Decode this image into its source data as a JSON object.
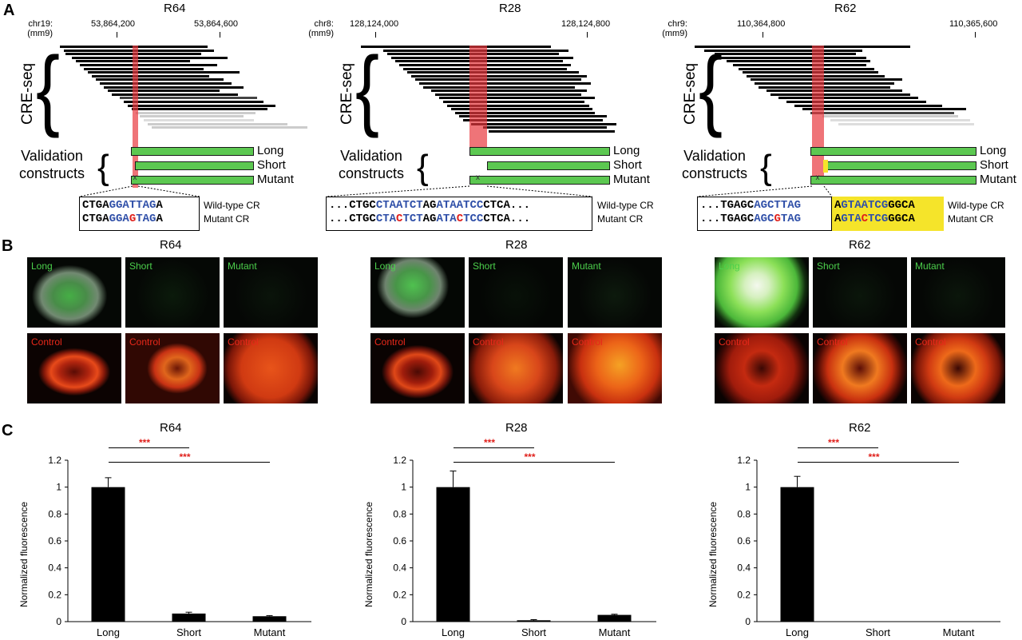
{
  "panel_letters": {
    "a": "A",
    "b": "B",
    "c": "C"
  },
  "track_labels": {
    "cre_seq": "CRE-seq",
    "validation_line1": "Validation",
    "validation_line2": "constructs"
  },
  "panel_a": [
    {
      "title": "R64",
      "chrom": "chr19:",
      "assembly": "(mm9)",
      "coords": [
        "53,864,200",
        "53,864,600"
      ],
      "constructs": [
        "Long",
        "Short",
        "Mutant"
      ],
      "wt_seq": [
        {
          "t": "CTGA",
          "c": "k"
        },
        {
          "t": "GGATTAG",
          "c": "b"
        },
        {
          "t": "A",
          "c": "k"
        }
      ],
      "mut_seq": [
        {
          "t": "CTGA",
          "c": "k"
        },
        {
          "t": "GGA",
          "c": "b"
        },
        {
          "t": "G",
          "c": "r"
        },
        {
          "t": "TAG",
          "c": "b"
        },
        {
          "t": "A",
          "c": "k"
        }
      ],
      "wt_label": "Wild-type CR",
      "mut_label": "Mutant CR"
    },
    {
      "title": "R28",
      "chrom": "chr8:",
      "assembly": "(mm9)",
      "coords": [
        "128,124,000",
        "128,124,800"
      ],
      "constructs": [
        "Long",
        "Short",
        "Mutant"
      ],
      "wt_seq": [
        {
          "t": "...CTGC",
          "c": "k"
        },
        {
          "t": "CTAATCT",
          "c": "b"
        },
        {
          "t": "AG",
          "c": "k"
        },
        {
          "t": "ATAATCC",
          "c": "b"
        },
        {
          "t": "CTCA...",
          "c": "k"
        }
      ],
      "mut_seq": [
        {
          "t": "...CTGC",
          "c": "k"
        },
        {
          "t": "CTA",
          "c": "b"
        },
        {
          "t": "C",
          "c": "r"
        },
        {
          "t": "TCT",
          "c": "b"
        },
        {
          "t": "AG",
          "c": "k"
        },
        {
          "t": "ATA",
          "c": "b"
        },
        {
          "t": "C",
          "c": "r"
        },
        {
          "t": "TCC",
          "c": "b"
        },
        {
          "t": "CTCA...",
          "c": "k"
        }
      ],
      "wt_label": "Wild-type CR",
      "mut_label": "Mutant CR"
    },
    {
      "title": "R62",
      "chrom": "chr9:",
      "assembly": "(mm9)",
      "coords": [
        "110,364,800",
        "110,365,600"
      ],
      "constructs": [
        "Long",
        "Short",
        "Mutant"
      ],
      "wt_seq": [
        {
          "t": "...TGAGC",
          "c": "k"
        },
        {
          "t": "AGCTTAG",
          "c": "b"
        }
      ],
      "mut_seq": [
        {
          "t": "...TGAGC",
          "c": "k"
        },
        {
          "t": "AGC",
          "c": "b"
        },
        {
          "t": "G",
          "c": "r"
        },
        {
          "t": "TAG",
          "c": "b"
        }
      ],
      "wt_seq2": [
        {
          "t": "A",
          "c": "k"
        },
        {
          "t": "GTAATCG",
          "c": "b"
        },
        {
          "t": "GGCA",
          "c": "k"
        }
      ],
      "mut_seq2": [
        {
          "t": "A",
          "c": "k"
        },
        {
          "t": "GTA",
          "c": "b"
        },
        {
          "t": "C",
          "c": "r"
        },
        {
          "t": "TCG",
          "c": "b"
        },
        {
          "t": "GGCA",
          "c": "k"
        }
      ],
      "wt_label": "Wild-type CR",
      "mut_label": "Mutant CR"
    }
  ],
  "panel_b": [
    {
      "title": "R64",
      "top": [
        "Long",
        "Short",
        "Mutant"
      ],
      "bottom": [
        "Control",
        "Control",
        "Control"
      ]
    },
    {
      "title": "R28",
      "top": [
        "Long",
        "Short",
        "Mutant"
      ],
      "bottom": [
        "Control",
        "Control",
        "Control"
      ]
    },
    {
      "title": "R62",
      "top": [
        "Long",
        "Short",
        "Mutant"
      ],
      "bottom": [
        "Control",
        "Control",
        "Control"
      ]
    }
  ],
  "colors": {
    "highlight_red": "#e8393f",
    "construct_green": "#5cc851",
    "seq_blue": "#2f4fa8",
    "seq_red": "#e0201b",
    "yellow_highlight": "#f5e42a",
    "gfp_green": "#4cd04c",
    "control_red": "#e8281a",
    "significance_red": "#e0201b"
  },
  "chart_data": [
    {
      "type": "bar",
      "title": "R64",
      "categories": [
        "Long",
        "Short",
        "Mutant"
      ],
      "values": [
        1.0,
        0.06,
        0.04
      ],
      "errors": [
        0.07,
        0.01,
        0.005
      ],
      "ylabel": "Normalized fluorescence",
      "ylim": [
        0,
        1.2
      ],
      "yticks": [
        "0",
        "0.2",
        "0.4",
        "0.6",
        "0.8",
        "1",
        "1.2"
      ],
      "significance": [
        {
          "from": "Long",
          "to": "Short",
          "label": "***"
        },
        {
          "from": "Long",
          "to": "Mutant",
          "label": "***"
        }
      ]
    },
    {
      "type": "bar",
      "title": "R28",
      "categories": [
        "Long",
        "Short",
        "Mutant"
      ],
      "values": [
        1.0,
        0.01,
        0.05
      ],
      "errors": [
        0.12,
        0.005,
        0.005
      ],
      "ylabel": "Normalized fluorescence",
      "ylim": [
        0,
        1.2
      ],
      "yticks": [
        "0",
        "0.2",
        "0.4",
        "0.6",
        "0.8",
        "1",
        "1.2"
      ],
      "significance": [
        {
          "from": "Long",
          "to": "Short",
          "label": "***"
        },
        {
          "from": "Long",
          "to": "Mutant",
          "label": "***"
        }
      ]
    },
    {
      "type": "bar",
      "title": "R62",
      "categories": [
        "Long",
        "Short",
        "Mutant"
      ],
      "values": [
        1.0,
        0.0,
        0.0
      ],
      "errors": [
        0.08,
        0.0,
        0.0
      ],
      "ylabel": "Normalized fluorescence",
      "ylim": [
        0,
        1.2
      ],
      "yticks": [
        "0",
        "0.2",
        "0.4",
        "0.6",
        "0.8",
        "1",
        "1.2"
      ],
      "significance": [
        {
          "from": "Long",
          "to": "Short",
          "label": "***"
        },
        {
          "from": "Long",
          "to": "Mutant",
          "label": "***"
        }
      ]
    }
  ]
}
